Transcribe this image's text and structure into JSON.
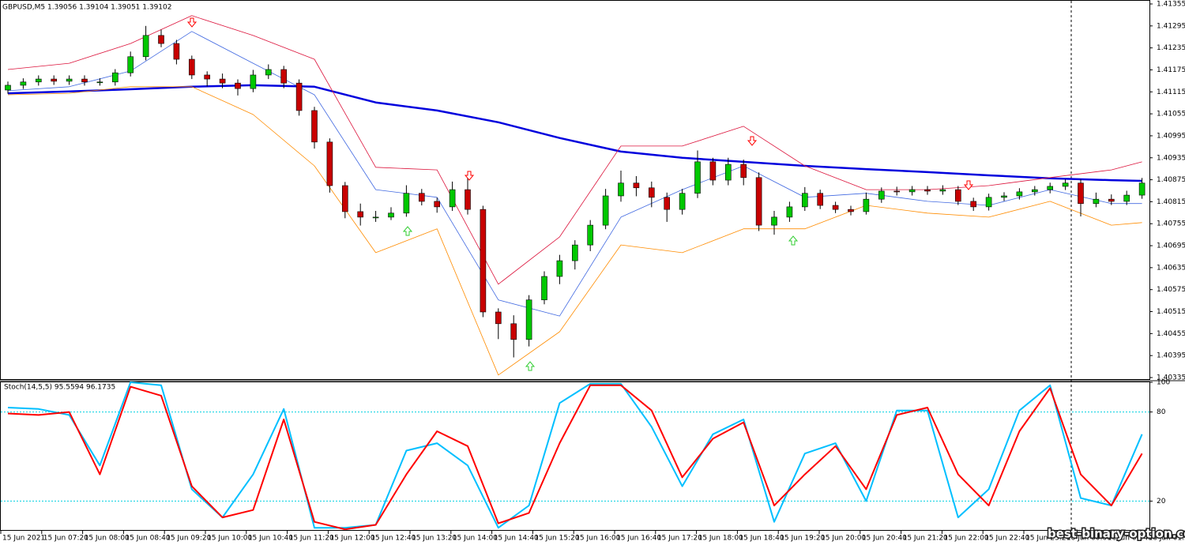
{
  "chart_data": [
    {
      "type": "candlestick",
      "title": "GBPUSD,M5  1.39056 1.39104 1.39051 1.39102",
      "ylim": [
        1.40335,
        1.41355
      ],
      "yticks": [
        1.41355,
        1.41295,
        1.41235,
        1.41175,
        1.41115,
        1.41055,
        1.40995,
        1.40935,
        1.40875,
        1.40815,
        1.40755,
        1.40695,
        1.40635,
        1.40575,
        1.40515,
        1.40455,
        1.40395,
        1.40335
      ],
      "up_color": "#00c800",
      "down_color": "#c80000",
      "open": [
        1.4112,
        1.41133,
        1.41142,
        1.4115,
        1.41144,
        1.4115,
        1.41142,
        1.41142,
        1.41167,
        1.41211,
        1.41269,
        1.41247,
        1.41204,
        1.41161,
        1.4115,
        1.41139,
        1.41124,
        1.41161,
        1.41176,
        1.41139,
        1.41064,
        1.40978,
        1.40859,
        1.40788,
        1.40773,
        1.40773,
        1.40784,
        1.40838,
        1.40816,
        1.40801,
        1.40848,
        1.40794,
        1.40514,
        1.40482,
        1.40439,
        1.40547,
        1.40611,
        1.40654,
        1.40697,
        1.40751,
        1.40831,
        1.40866,
        1.40853,
        1.40827,
        1.40794,
        1.40838,
        1.40924,
        1.40874,
        1.40917,
        1.40881,
        1.40751,
        1.40773,
        1.40801,
        1.40838,
        1.40805,
        1.40794,
        1.40788,
        1.40822,
        1.40844,
        1.40842,
        1.40848,
        1.40844,
        1.40848,
        1.40816,
        1.40801,
        1.40827,
        1.40831,
        1.40842,
        1.40848,
        1.40857,
        1.40866,
        1.4081,
        1.40822,
        1.40816,
        1.40833
      ],
      "high": [
        1.41143,
        1.41152,
        1.4116,
        1.4116,
        1.4116,
        1.4116,
        1.41152,
        1.41177,
        1.41225,
        1.41295,
        1.41285,
        1.41257,
        1.41214,
        1.41171,
        1.41165,
        1.41149,
        1.41175,
        1.4119,
        1.41186,
        1.41149,
        1.41074,
        1.40988,
        1.40869,
        1.4081,
        1.4079,
        1.408,
        1.4086,
        1.4085,
        1.40826,
        1.4087,
        1.4088,
        1.40804,
        1.40524,
        1.40505,
        1.4056,
        1.40625,
        1.4067,
        1.4071,
        1.40765,
        1.4085,
        1.409,
        1.40885,
        1.4087,
        1.4084,
        1.4085,
        1.40955,
        1.40935,
        1.40935,
        1.4093,
        1.40895,
        1.4079,
        1.40815,
        1.40855,
        1.40848,
        1.40815,
        1.40804,
        1.4084,
        1.40854,
        1.40856,
        1.40858,
        1.40858,
        1.4086,
        1.40858,
        1.40826,
        1.40837,
        1.40841,
        1.40852,
        1.40858,
        1.40867,
        1.40876,
        1.40876,
        1.4084,
        1.40835,
        1.40845,
        1.4088
      ],
      "low": [
        1.4111,
        1.41123,
        1.41132,
        1.41134,
        1.41134,
        1.41132,
        1.41132,
        1.41132,
        1.41157,
        1.41201,
        1.41237,
        1.4119,
        1.4115,
        1.4113,
        1.41125,
        1.41105,
        1.41114,
        1.4115,
        1.41125,
        1.4105,
        1.4096,
        1.4084,
        1.4077,
        1.4075,
        1.4076,
        1.40765,
        1.40774,
        1.40805,
        1.40785,
        1.4079,
        1.4078,
        1.405,
        1.4044,
        1.4039,
        1.4042,
        1.40535,
        1.4059,
        1.4063,
        1.4068,
        1.4074,
        1.40815,
        1.4083,
        1.408,
        1.4076,
        1.4078,
        1.40825,
        1.4086,
        1.4086,
        1.4086,
        1.40735,
        1.40725,
        1.4076,
        1.4079,
        1.40795,
        1.40784,
        1.40778,
        1.4078,
        1.40812,
        1.40832,
        1.40832,
        1.40834,
        1.40834,
        1.40806,
        1.4079,
        1.40791,
        1.40817,
        1.40821,
        1.40832,
        1.40838,
        1.40847,
        1.40775,
        1.408,
        1.40806,
        1.40806,
        1.40823
      ],
      "close": [
        1.41133,
        1.41142,
        1.4115,
        1.41144,
        1.4115,
        1.41142,
        1.41142,
        1.41167,
        1.41211,
        1.41269,
        1.41247,
        1.41204,
        1.41161,
        1.4115,
        1.41139,
        1.41124,
        1.41161,
        1.41176,
        1.41139,
        1.41064,
        1.40978,
        1.40859,
        1.40788,
        1.40773,
        1.40773,
        1.40784,
        1.40838,
        1.40816,
        1.40801,
        1.40848,
        1.40794,
        1.40514,
        1.40482,
        1.40439,
        1.40547,
        1.40611,
        1.40654,
        1.40697,
        1.40751,
        1.40831,
        1.40866,
        1.40853,
        1.40827,
        1.40794,
        1.40838,
        1.40924,
        1.40874,
        1.40917,
        1.40881,
        1.40751,
        1.40773,
        1.40801,
        1.40838,
        1.40805,
        1.40794,
        1.40788,
        1.40822,
        1.40844,
        1.40842,
        1.40848,
        1.40844,
        1.40848,
        1.40816,
        1.40801,
        1.40827,
        1.40831,
        1.40842,
        1.40848,
        1.40857,
        1.40866,
        1.4081,
        1.40822,
        1.40816,
        1.40833,
        1.40866
      ],
      "overlays": [
        {
          "color": "#0000dd",
          "width": 2.5,
          "x": [
            0,
            4,
            8,
            12,
            16,
            20,
            24,
            28,
            32,
            36,
            40,
            44,
            48,
            52,
            56,
            60,
            64,
            68,
            72,
            74
          ],
          "values": [
            1.41111,
            1.41116,
            1.41122,
            1.41129,
            1.41133,
            1.41129,
            1.41086,
            1.41064,
            1.41032,
            1.40989,
            1.40952,
            1.40935,
            1.40924,
            1.40913,
            1.40904,
            1.40896,
            1.40887,
            1.40879,
            1.40874,
            1.40872
          ]
        },
        {
          "color": "#dc143c",
          "width": 0.8,
          "x": [
            0,
            4,
            8,
            12,
            16,
            20,
            24,
            28,
            32,
            36,
            40,
            44,
            48,
            52,
            56,
            60,
            64,
            68,
            72,
            74
          ],
          "values": [
            1.41176,
            1.41193,
            1.41247,
            1.41323,
            1.41269,
            1.41204,
            1.40909,
            1.40902,
            1.4059,
            1.40719,
            1.40967,
            1.40967,
            1.41021,
            1.40913,
            1.40848,
            1.40848,
            1.40859,
            1.40881,
            1.40902,
            1.40924
          ]
        },
        {
          "color": "#ff8c00",
          "width": 0.8,
          "x": [
            0,
            4,
            8,
            12,
            16,
            20,
            24,
            28,
            32,
            36,
            40,
            44,
            48,
            52,
            56,
            60,
            64,
            68,
            72,
            74
          ],
          "values": [
            1.41107,
            1.41111,
            1.41129,
            1.41129,
            1.41053,
            1.40913,
            1.40676,
            1.40741,
            1.40342,
            1.4046,
            1.40697,
            1.40676,
            1.40741,
            1.40741,
            1.40805,
            1.40784,
            1.40773,
            1.40816,
            1.40751,
            1.40758
          ]
        },
        {
          "color": "#4169e1",
          "width": 0.8,
          "x": [
            0,
            4,
            8,
            12,
            16,
            20,
            24,
            28,
            32,
            36,
            40,
            44,
            48,
            52,
            56,
            60,
            64,
            68,
            72,
            74
          ],
          "values": [
            1.41118,
            1.41129,
            1.41172,
            1.4128,
            1.41193,
            1.41107,
            1.40848,
            1.40827,
            1.40547,
            1.40503,
            1.40773,
            1.40848,
            1.40913,
            1.40827,
            1.40838,
            1.40816,
            1.40805,
            1.40848,
            1.4081,
            1.4081
          ]
        }
      ]
    },
    {
      "type": "line",
      "title": "Stoch(14,5,5) 95.5594 96.1735",
      "ylim": [
        0,
        100
      ],
      "yticks": [
        100,
        80,
        20
      ],
      "levels": [
        80,
        20
      ],
      "x": [
        0,
        2,
        4,
        6,
        8,
        10,
        12,
        14,
        16,
        18,
        20,
        22,
        24,
        26,
        28,
        30,
        32,
        34,
        36,
        38,
        40,
        42,
        44,
        46,
        48,
        50,
        52,
        54,
        56,
        58,
        60,
        62,
        64,
        66,
        68,
        70,
        72,
        74
      ],
      "series": [
        {
          "color": "#00bfff",
          "values": [
            83,
            82,
            78,
            44,
            100,
            98,
            28,
            9,
            38,
            82,
            2,
            2,
            4,
            54,
            59,
            44,
            2,
            17,
            86,
            99,
            99,
            70,
            30,
            65,
            75,
            6,
            52,
            59,
            20,
            81,
            81,
            9,
            28,
            81,
            98,
            22,
            17,
            65
          ]
        },
        {
          "color": "#ff0000",
          "values": [
            79,
            78,
            80,
            38,
            97,
            91,
            30,
            9,
            14,
            75,
            6,
            1,
            4,
            38,
            67,
            57,
            5,
            12,
            59,
            98,
            98,
            81,
            36,
            62,
            73,
            17,
            38,
            57,
            28,
            78,
            83,
            38,
            17,
            67,
            96,
            38,
            17,
            52
          ]
        }
      ],
      "xtick_labels": [
        "15 Jun 2021",
        "15 Jun 07:20",
        "15 Jun 08:00",
        "15 Jun 08:40",
        "15 Jun 09:20",
        "15 Jun 10:00",
        "15 Jun 10:40",
        "15 Jun 11:20",
        "15 Jun 12:00",
        "15 Jun 12:40",
        "15 Jun 13:20",
        "15 Jun 14:00",
        "15 Jun 14:40",
        "15 Jun 15:20",
        "15 Jun 16:00",
        "15 Jun 16:40",
        "15 Jun 17:20",
        "15 Jun 18:00",
        "15 Jun 18:40",
        "15 Jun 19:20",
        "15 Jun 20:00",
        "15 Jun 20:40",
        "15 Jun 21:20",
        "15 Jun 22:00",
        "15 Jun 22:40",
        "15 Jun 23:20",
        "16 Jun 00:00",
        "16 Jun 00:40",
        "16 Jun 01:2"
      ]
    }
  ],
  "watermark": "best-binary-option.com"
}
